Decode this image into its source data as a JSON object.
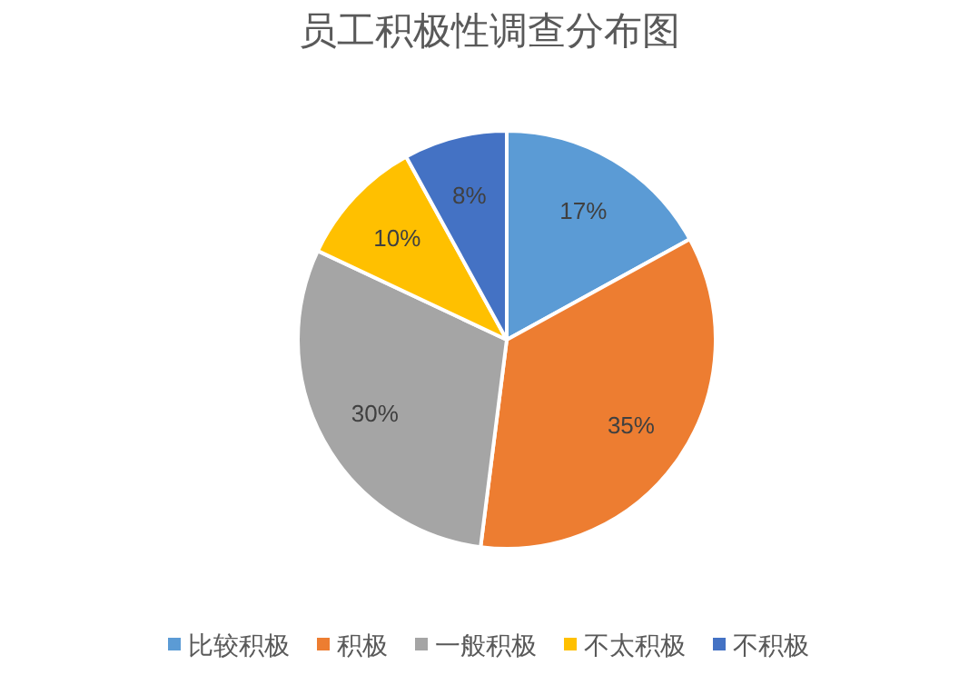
{
  "chart_data": {
    "type": "pie",
    "title": "员工积极性调查分布图",
    "categories": [
      "比较积极",
      "积极",
      "一般积极",
      "不太积极",
      "不积极"
    ],
    "values": [
      17,
      35,
      30,
      10,
      8
    ],
    "value_labels": [
      "17%",
      "35%",
      "30%",
      "10%",
      "8%"
    ],
    "colors": [
      "#5b9bd5",
      "#ed7d31",
      "#a5a5a5",
      "#ffc000",
      "#4472c4"
    ],
    "legend": "bottom"
  }
}
